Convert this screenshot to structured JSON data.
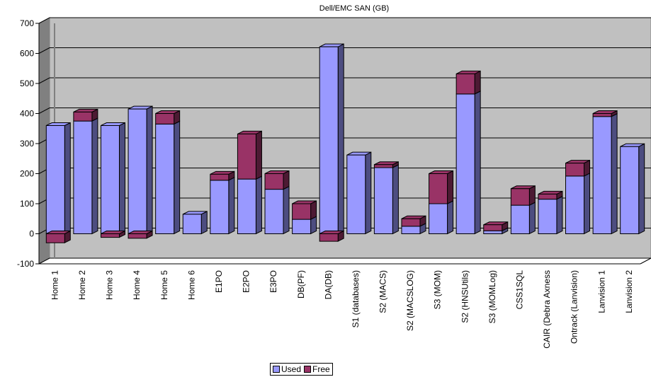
{
  "chart_data": {
    "type": "bar",
    "stacked": true,
    "three_d": true,
    "title": "Dell/EMC SAN (GB)",
    "xlabel": "",
    "ylabel": "",
    "ylim": [
      -100,
      700
    ],
    "y_ticks": [
      -100,
      0,
      100,
      200,
      300,
      400,
      500,
      600,
      700
    ],
    "grid": true,
    "legend_position": "bottom",
    "categories": [
      "Home 1",
      "Home 2",
      "Home 3",
      "Home 4",
      "Home 5",
      "Home 6",
      "E1PO",
      "E2PO",
      "E3PO",
      "DB(PF)",
      "DA(DB)",
      "S1 (databases)",
      "S2 (MACS)",
      "S2 (MACSLOG)",
      "S3 (MOM)",
      "S2 (HNSUtils)",
      "S3 (MOMLog)",
      "CSS1SQL",
      "CAIR (Debra Axness",
      "Ontrack (Lanvision)",
      "Lanvision 1",
      "Lanvision 2"
    ],
    "series": [
      {
        "name": "Used",
        "color": "#9999ff",
        "side_color": "#4d4d80",
        "values": [
          360,
          375,
          360,
          415,
          365,
          65,
          178,
          182,
          148,
          48,
          622,
          262,
          220,
          25,
          100,
          465,
          10,
          95,
          115,
          192,
          390,
          290
        ]
      },
      {
        "name": "Free",
        "color": "#993366",
        "side_color": "#4d1a33",
        "values": [
          -30,
          30,
          -12,
          -15,
          35,
          0,
          20,
          150,
          52,
          52,
          -25,
          0,
          10,
          25,
          100,
          67,
          20,
          55,
          17,
          43,
          10,
          0
        ]
      }
    ]
  }
}
